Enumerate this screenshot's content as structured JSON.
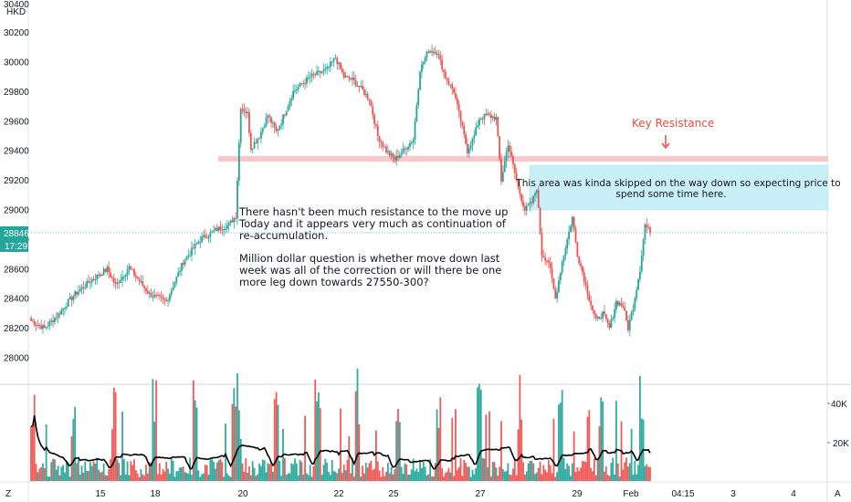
{
  "currency": "HKD",
  "top_partial_tick": "30400",
  "price_axis": {
    "ticks": [
      "30200",
      "30000",
      "29800",
      "29600",
      "29400",
      "29200",
      "29000",
      "28800",
      "28600",
      "28400",
      "28200",
      "28000"
    ],
    "last_price_label": "28846",
    "countdown_label": "17:29"
  },
  "volume_axis": {
    "ticks": [
      "40K",
      "20K"
    ]
  },
  "time_axis": {
    "labels": [
      "15",
      "18",
      "20",
      "22",
      "25",
      "27",
      "29",
      "Feb",
      "04:15",
      "3",
      "4"
    ]
  },
  "corner_buttons": {
    "left": "Z",
    "right": "A"
  },
  "annotations": {
    "main_text": [
      "There hasn't been much resistance to the move up",
      "Today and it appears very much as continuation of",
      "re-accumulation.",
      "",
      "Million dollar question is whether move down last",
      "week was all of the correction or will there be one",
      "more leg down towards 27550-300?"
    ],
    "key_resistance": "Key Resistance",
    "blue_box_text": [
      "This area was kinda skipped on the way down so expecting price to",
      "spend some time here."
    ]
  },
  "colors": {
    "up": "#26a69a",
    "down": "#ef5350",
    "resistance_band": "#f9c6c9",
    "blue_box": "#c9f0f7",
    "label_bg": "#26a69a",
    "annotation_red": "#ef4a3c",
    "ma_line": "#000000"
  },
  "chart_data": {
    "type": "candlestick",
    "symbol_currency": "HKD",
    "y_range": [
      27880,
      30420
    ],
    "last_price": 28846,
    "resistance_zone": [
      29335,
      29365
    ],
    "target_zone": [
      29000,
      29300
    ],
    "x_ticks": [
      "15",
      "18",
      "20",
      "22",
      "25",
      "27",
      "29",
      "Feb",
      "04:15",
      "3",
      "4"
    ],
    "price_path_keypoints": [
      [
        0,
        28250
      ],
      [
        8,
        28200
      ],
      [
        15,
        28280
      ],
      [
        25,
        28420
      ],
      [
        35,
        28520
      ],
      [
        45,
        28600
      ],
      [
        50,
        28490
      ],
      [
        58,
        28610
      ],
      [
        70,
        28430
      ],
      [
        80,
        28380
      ],
      [
        90,
        28650
      ],
      [
        100,
        28800
      ],
      [
        110,
        28870
      ],
      [
        117,
        28900
      ],
      [
        121,
        28960
      ],
      [
        124,
        29700
      ],
      [
        128,
        29650
      ],
      [
        130,
        29420
      ],
      [
        135,
        29500
      ],
      [
        140,
        29640
      ],
      [
        145,
        29530
      ],
      [
        148,
        29600
      ],
      [
        155,
        29800
      ],
      [
        165,
        29900
      ],
      [
        175,
        29950
      ],
      [
        180,
        30030
      ],
      [
        185,
        29900
      ],
      [
        190,
        29880
      ],
      [
        195,
        29820
      ],
      [
        200,
        29750
      ],
      [
        205,
        29500
      ],
      [
        210,
        29400
      ],
      [
        215,
        29340
      ],
      [
        220,
        29400
      ],
      [
        226,
        29480
      ],
      [
        230,
        29950
      ],
      [
        235,
        30080
      ],
      [
        240,
        30070
      ],
      [
        245,
        29900
      ],
      [
        250,
        29800
      ],
      [
        255,
        29550
      ],
      [
        258,
        29400
      ],
      [
        262,
        29500
      ],
      [
        265,
        29620
      ],
      [
        270,
        29640
      ],
      [
        275,
        29620
      ],
      [
        278,
        29200
      ],
      [
        282,
        29450
      ],
      [
        285,
        29300
      ],
      [
        288,
        29150
      ],
      [
        292,
        29000
      ],
      [
        296,
        29050
      ],
      [
        299,
        29150
      ],
      [
        302,
        28700
      ],
      [
        306,
        28650
      ],
      [
        310,
        28400
      ],
      [
        314,
        28650
      ],
      [
        320,
        28950
      ],
      [
        323,
        28700
      ],
      [
        326,
        28580
      ],
      [
        330,
        28400
      ],
      [
        334,
        28250
      ],
      [
        338,
        28300
      ],
      [
        342,
        28200
      ],
      [
        346,
        28380
      ],
      [
        350,
        28350
      ],
      [
        353,
        28200
      ],
      [
        356,
        28350
      ],
      [
        360,
        28600
      ],
      [
        363,
        28900
      ],
      [
        366,
        28846
      ]
    ],
    "volume_ticks": [
      "40K",
      "20K"
    ],
    "moving_average_on_volume": true
  }
}
